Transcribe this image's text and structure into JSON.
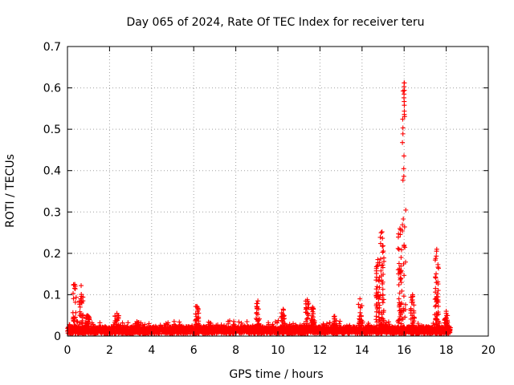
{
  "chart_data": {
    "type": "scatter",
    "title": "Day 065 of 2024, Rate Of TEC Index for receiver teru",
    "xlabel": "GPS time / hours",
    "ylabel": "ROTI / TECUs",
    "xlim": [
      0,
      20
    ],
    "ylim": [
      0,
      0.7
    ],
    "xticks": [
      0,
      2,
      4,
      6,
      8,
      10,
      12,
      14,
      16,
      18,
      20
    ],
    "yticks": [
      0,
      0.1,
      0.2,
      0.3,
      0.4,
      0.5,
      0.6,
      0.7
    ],
    "xtick_labels": [
      "0",
      "2",
      "4",
      "6",
      "8",
      "10",
      "12",
      "14",
      "16",
      "18",
      "20"
    ],
    "ytick_labels": [
      "0",
      "0.1",
      "0.2",
      "0.3",
      "0.4",
      "0.5",
      "0.6",
      "0.7"
    ],
    "grid": true,
    "marker": "+",
    "color": "#ff0000",
    "series": [
      {
        "name": "ROTI",
        "baseline_x_range": [
          0,
          18.2
        ],
        "baseline_level": 0.02,
        "bursts": [
          {
            "x": 0.35,
            "peak": 0.125
          },
          {
            "x": 0.65,
            "peak": 0.122
          },
          {
            "x": 0.95,
            "peak": 0.05
          },
          {
            "x": 2.35,
            "peak": 0.055
          },
          {
            "x": 3.3,
            "peak": 0.035
          },
          {
            "x": 6.15,
            "peak": 0.072
          },
          {
            "x": 9.05,
            "peak": 0.085
          },
          {
            "x": 10.25,
            "peak": 0.065
          },
          {
            "x": 11.4,
            "peak": 0.088
          },
          {
            "x": 11.65,
            "peak": 0.07
          },
          {
            "x": 12.7,
            "peak": 0.048
          },
          {
            "x": 13.9,
            "peak": 0.09
          },
          {
            "x": 14.75,
            "peak": 0.185
          },
          {
            "x": 14.95,
            "peak": 0.252
          },
          {
            "x": 15.8,
            "peak": 0.26
          },
          {
            "x": 16.0,
            "peak": 0.612
          },
          {
            "x": 16.4,
            "peak": 0.1
          },
          {
            "x": 17.55,
            "peak": 0.21
          },
          {
            "x": 18.0,
            "peak": 0.06
          }
        ]
      }
    ]
  }
}
